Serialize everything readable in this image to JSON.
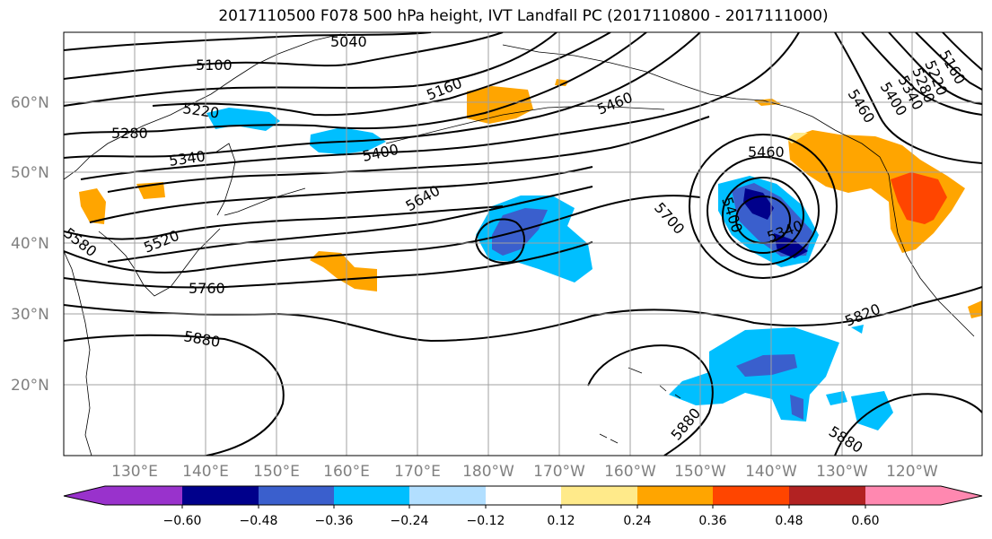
{
  "title": "2017110500 F078 500 hPa height, IVT Landfall PC (2017110800 - 2017111000)",
  "lat_labels": [
    "60°N",
    "50°N",
    "40°N",
    "30°N",
    "20°N"
  ],
  "lon_labels": [
    "130°E",
    "140°E",
    "150°E",
    "160°E",
    "170°E",
    "180°W",
    "170°W",
    "160°W",
    "150°W",
    "140°W",
    "130°W",
    "120°W"
  ],
  "contour_labels": [
    "5040",
    "5100",
    "5160",
    "5220",
    "5280",
    "5340",
    "5400",
    "5460",
    "5520",
    "5580",
    "5640",
    "5700",
    "5760",
    "5880",
    "5460",
    "5400",
    "5340",
    "5160",
    "5220",
    "5280",
    "5340",
    "5400",
    "5460",
    "5820",
    "5880",
    "5880"
  ],
  "colorbar": {
    "ticks": [
      "−0.60",
      "−0.48",
      "−0.36",
      "−0.24",
      "−0.12",
      "0.12",
      "0.24",
      "0.36",
      "0.48",
      "0.60"
    ],
    "colors": [
      "#9932cc",
      "#00008b",
      "#3a5fcd",
      "#00bfff",
      "#b2dfff",
      "#ffffff",
      "#ffea8a",
      "#ffa500",
      "#ff4500",
      "#b22222",
      "#ff88b0"
    ]
  },
  "colors": {
    "contour": "#000000",
    "grid": "#a0a0a0",
    "axis_label": "#808080"
  }
}
